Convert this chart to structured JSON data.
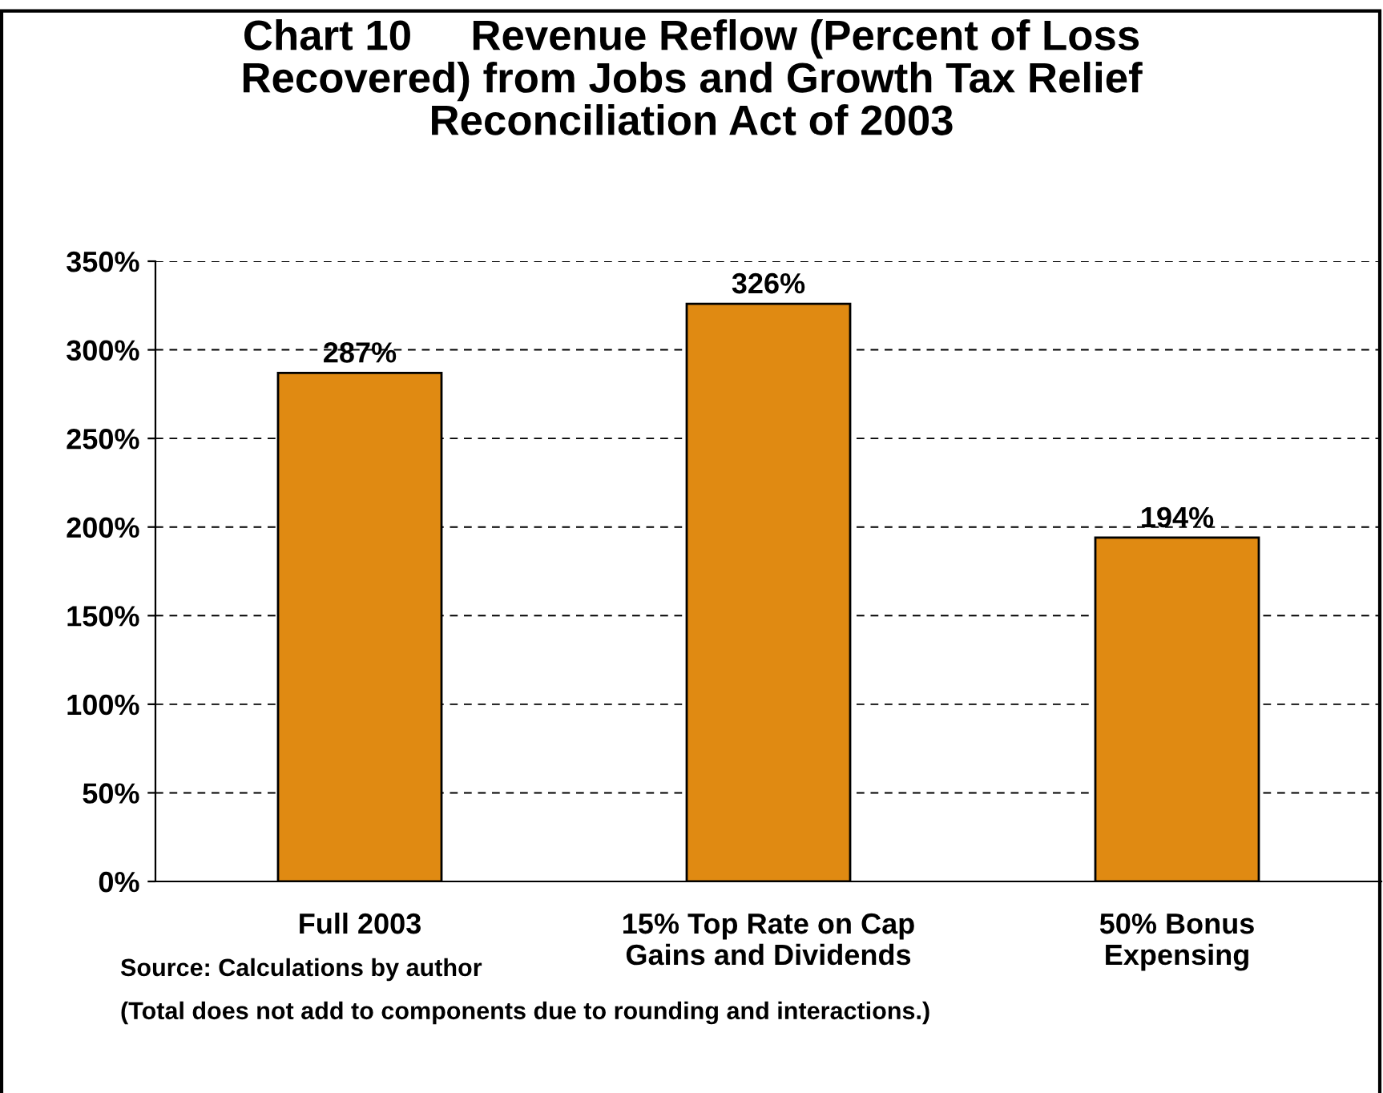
{
  "chart_data": {
    "type": "bar",
    "title": "Chart 10     Revenue Reflow (Percent of Loss\nRecovered) from Jobs and Growth Tax Relief\nReconciliation Act of 2003",
    "categories": [
      "Full 2003",
      "15% Top Rate on Cap\nGains and Dividends",
      "50% Bonus\nExpensing"
    ],
    "values": [
      287,
      326,
      194
    ],
    "value_labels": [
      "287%",
      "326%",
      "194%"
    ],
    "color": "#e08a12",
    "ylim": [
      0,
      350
    ],
    "yticks": [
      {
        "value": 0,
        "label": "0%"
      },
      {
        "value": 50,
        "label": "50%"
      },
      {
        "value": 100,
        "label": "100%"
      },
      {
        "value": 150,
        "label": "150%"
      },
      {
        "value": 200,
        "label": "200%"
      },
      {
        "value": 250,
        "label": "250%"
      },
      {
        "value": 300,
        "label": "300%"
      },
      {
        "value": 350,
        "label": "350%"
      }
    ],
    "grid": "y",
    "line_style": "dashed",
    "annotations": [
      "Source: Calculations by author",
      "(Total does not add to components due to rounding and interactions.)"
    ]
  }
}
